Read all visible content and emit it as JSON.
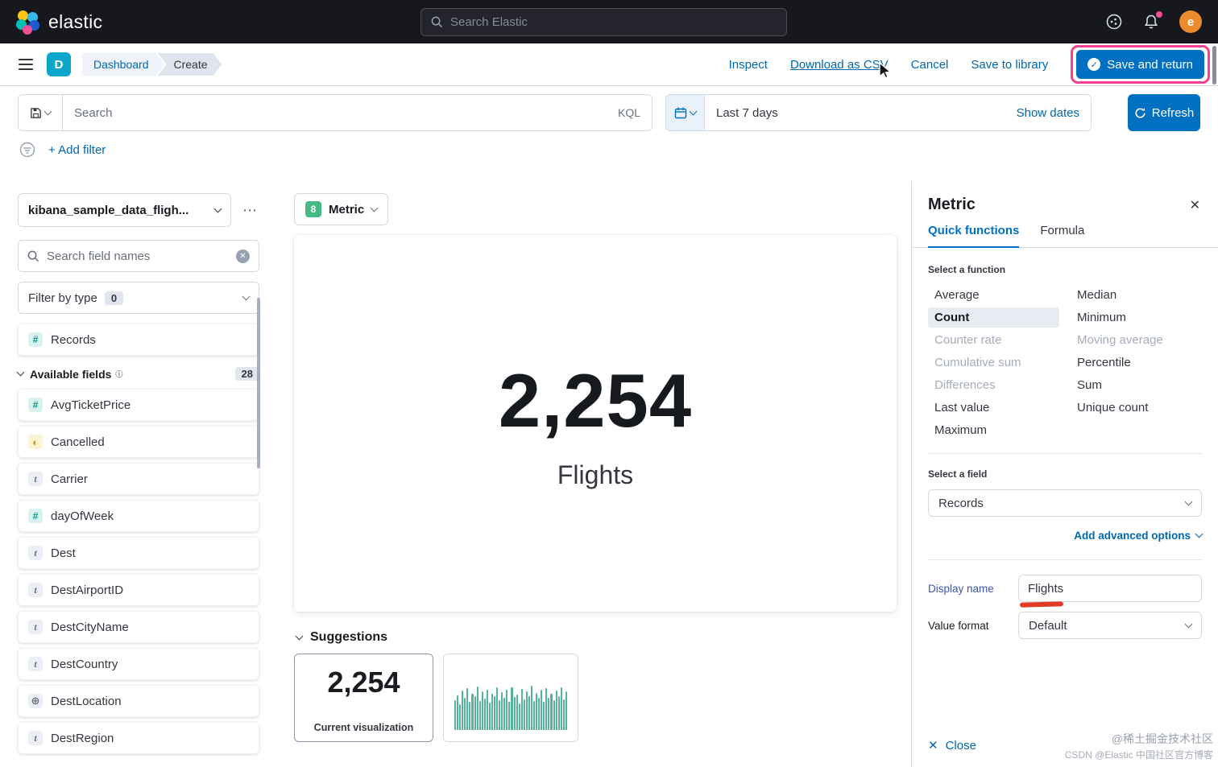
{
  "topnav": {
    "brand": "elastic",
    "search_placeholder": "Search Elastic",
    "avatar_initial": "e"
  },
  "toolbar": {
    "app_initial": "D",
    "breadcrumbs": [
      "Dashboard",
      "Create"
    ],
    "inspect": "Inspect",
    "download_csv": "Download as CSV",
    "cancel": "Cancel",
    "save_to_library": "Save to library",
    "save_and_return": "Save and return"
  },
  "querybar": {
    "search_placeholder": "Search",
    "kql": "KQL",
    "date_value": "Last 7 days",
    "show_dates": "Show dates",
    "refresh": "Refresh",
    "add_filter": "+ Add filter"
  },
  "fieldpanel": {
    "index_pattern": "kibana_sample_data_fligh...",
    "search_placeholder": "Search field names",
    "filter_label": "Filter by type",
    "filter_count": "0",
    "records_label": "Records",
    "available_label": "Available fields",
    "available_count": "28",
    "fields": [
      {
        "name": "AvgTicketPrice",
        "type": "number"
      },
      {
        "name": "Cancelled",
        "type": "boolean"
      },
      {
        "name": "Carrier",
        "type": "text"
      },
      {
        "name": "dayOfWeek",
        "type": "number"
      },
      {
        "name": "Dest",
        "type": "text"
      },
      {
        "name": "DestAirportID",
        "type": "text"
      },
      {
        "name": "DestCityName",
        "type": "text"
      },
      {
        "name": "DestCountry",
        "type": "text"
      },
      {
        "name": "DestLocation",
        "type": "geo"
      },
      {
        "name": "DestRegion",
        "type": "text"
      }
    ]
  },
  "workspace": {
    "chart_type": "Metric",
    "metric_value": "2,254",
    "metric_label": "Flights",
    "suggestions_title": "Suggestions",
    "suggestions": [
      {
        "type": "metric",
        "value": "2,254",
        "label": "Current visualization"
      },
      {
        "type": "histogram",
        "bars": [
          52,
          60,
          45,
          68,
          55,
          72,
          48,
          63,
          58,
          75,
          50,
          66,
          54,
          70,
          47,
          62,
          58,
          73,
          51,
          65,
          56,
          69,
          49,
          74,
          57,
          61,
          46,
          71,
          53,
          67,
          59,
          76,
          50,
          64,
          55,
          70,
          48,
          72,
          56,
          62,
          51,
          68,
          58,
          74,
          53,
          66
        ]
      }
    ]
  },
  "configpanel": {
    "title": "Metric",
    "tabs": [
      {
        "label": "Quick functions"
      },
      {
        "label": "Formula"
      }
    ],
    "function_section": "Select a function",
    "functions_col1": [
      {
        "label": "Average",
        "state": "normal"
      },
      {
        "label": "Count",
        "state": "selected"
      },
      {
        "label": "Counter rate",
        "state": "disabled"
      },
      {
        "label": "Cumulative sum",
        "state": "disabled"
      },
      {
        "label": "Differences",
        "state": "disabled"
      },
      {
        "label": "Last value",
        "state": "normal"
      },
      {
        "label": "Maximum",
        "state": "normal"
      }
    ],
    "functions_col2": [
      {
        "label": "Median",
        "state": "normal"
      },
      {
        "label": "Minimum",
        "state": "normal"
      },
      {
        "label": "Moving average",
        "state": "disabled"
      },
      {
        "label": "Percentile",
        "state": "normal"
      },
      {
        "label": "Sum",
        "state": "normal"
      },
      {
        "label": "Unique count",
        "state": "normal"
      }
    ],
    "field_section": "Select a field",
    "field_value": "Records",
    "advanced_options": "Add advanced options",
    "display_name_label": "Display name",
    "display_name_value": "Flights",
    "value_format_label": "Value format",
    "value_format_value": "Default",
    "close": "Close"
  },
  "watermark": {
    "line1": "@稀土掘金技术社区",
    "line2": "CSDN @Elastic 中国社区官方博客"
  }
}
